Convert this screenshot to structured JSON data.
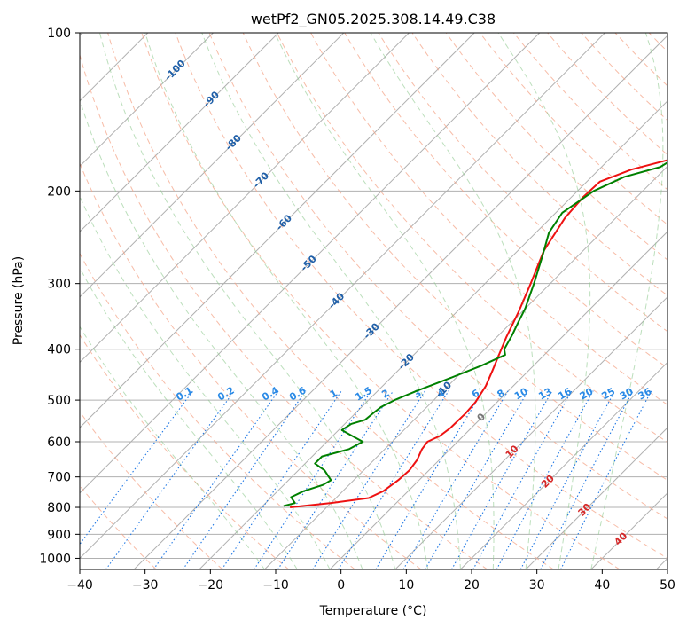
{
  "chart_data": {
    "type": "line",
    "title": "wetPf2_GN05.2025.308.14.49.C38",
    "xlabel": "Temperature (°C)",
    "ylabel": "Pressure (hPa)",
    "xlim": [
      -40,
      50
    ],
    "ylim": [
      1050,
      100
    ],
    "x_ticks": [
      -40,
      -30,
      -20,
      -10,
      0,
      10,
      20,
      30,
      40,
      50
    ],
    "y_ticks": [
      100,
      200,
      300,
      400,
      500,
      600,
      700,
      800,
      900,
      1000
    ],
    "skew_reference_pressure": 1000,
    "dry_adiabats_theta_c": [
      -30,
      -20,
      -10,
      0,
      10,
      20,
      30,
      40,
      50,
      60,
      70,
      80,
      90,
      100,
      110,
      120,
      130,
      140,
      150,
      160,
      170,
      180,
      190,
      200,
      210
    ],
    "moist_adiabats_start_c": [
      -10,
      -5,
      0,
      5,
      10,
      15,
      20,
      25,
      30,
      35,
      40
    ],
    "mixing_ratio_lines": [
      {
        "label": "0.1",
        "value": 0.1
      },
      {
        "label": "0.2",
        "value": 0.2
      },
      {
        "label": "0.4",
        "value": 0.4
      },
      {
        "label": "0.6",
        "value": 0.6
      },
      {
        "label": "1",
        "value": 1
      },
      {
        "label": "1.5",
        "value": 1.5
      },
      {
        "label": "2",
        "value": 2
      },
      {
        "label": "3",
        "value": 3
      },
      {
        "label": "4",
        "value": 4
      },
      {
        "label": "6",
        "value": 6
      },
      {
        "label": "8",
        "value": 8
      },
      {
        "label": "10",
        "value": 10
      },
      {
        "label": "13",
        "value": 13
      },
      {
        "label": "16",
        "value": 16
      },
      {
        "label": "20",
        "value": 20
      },
      {
        "label": "25",
        "value": 25
      },
      {
        "label": "30",
        "value": 30
      },
      {
        "label": "36",
        "value": 36
      }
    ],
    "isotherm_labels_blue": [
      {
        "label": "-100",
        "p": 118
      },
      {
        "label": "-90",
        "p": 134
      },
      {
        "label": "-80",
        "p": 162
      },
      {
        "label": "-70",
        "p": 191
      },
      {
        "label": "-60",
        "p": 230
      },
      {
        "label": "-50",
        "p": 275
      },
      {
        "label": "-40",
        "p": 324
      },
      {
        "label": "-30",
        "p": 370
      },
      {
        "label": "-20",
        "p": 423
      },
      {
        "label": "-10",
        "p": 478
      }
    ],
    "isotherm_labels_grey": [
      {
        "label": "0",
        "p": 540
      }
    ],
    "isotherm_labels_red": [
      {
        "label": "10",
        "p": 628
      },
      {
        "label": "20",
        "p": 715
      },
      {
        "label": "30",
        "p": 810
      },
      {
        "label": "40",
        "p": 920
      }
    ],
    "series": [
      {
        "name": "Temperature",
        "color": "#ee1111",
        "points": [
          {
            "t": -15.6,
            "p": 800
          },
          {
            "t": -10.0,
            "p": 785
          },
          {
            "t": -5.0,
            "p": 768
          },
          {
            "t": -3.8,
            "p": 745
          },
          {
            "t": -3.2,
            "p": 710
          },
          {
            "t": -3.0,
            "p": 680
          },
          {
            "t": -3.4,
            "p": 650
          },
          {
            "t": -4.3,
            "p": 620
          },
          {
            "t": -4.6,
            "p": 600
          },
          {
            "t": -3.6,
            "p": 585
          },
          {
            "t": -3.2,
            "p": 565
          },
          {
            "t": -3.1,
            "p": 530
          },
          {
            "t": -3.3,
            "p": 505
          },
          {
            "t": -4.2,
            "p": 470
          },
          {
            "t": -5.5,
            "p": 440
          },
          {
            "t": -7.0,
            "p": 409
          },
          {
            "t": -8.5,
            "p": 380
          },
          {
            "t": -10.5,
            "p": 340
          },
          {
            "t": -13.0,
            "p": 300
          },
          {
            "t": -16.0,
            "p": 260
          },
          {
            "t": -17.8,
            "p": 225
          },
          {
            "t": -18.2,
            "p": 205
          },
          {
            "t": -18.0,
            "p": 192
          },
          {
            "t": -15.0,
            "p": 182
          },
          {
            "t": -10.0,
            "p": 173
          },
          {
            "t": -5.0,
            "p": 163
          },
          {
            "t": 2.0,
            "p": 143
          },
          {
            "t": 9.0,
            "p": 126
          },
          {
            "t": 13.5,
            "p": 113
          },
          {
            "t": 16.5,
            "p": 105
          },
          {
            "t": 19.0,
            "p": 100
          }
        ]
      },
      {
        "name": "Dewpoint",
        "color": "#008000",
        "points": [
          {
            "t": -16.8,
            "p": 795
          },
          {
            "t": -15.5,
            "p": 785
          },
          {
            "t": -17.0,
            "p": 765
          },
          {
            "t": -16.0,
            "p": 745
          },
          {
            "t": -14.0,
            "p": 725
          },
          {
            "t": -13.5,
            "p": 710
          },
          {
            "t": -16.0,
            "p": 680
          },
          {
            "t": -18.5,
            "p": 660
          },
          {
            "t": -18.5,
            "p": 640
          },
          {
            "t": -15.5,
            "p": 620
          },
          {
            "t": -14.5,
            "p": 600
          },
          {
            "t": -17.0,
            "p": 585
          },
          {
            "t": -19.5,
            "p": 570
          },
          {
            "t": -19.0,
            "p": 555
          },
          {
            "t": -17.5,
            "p": 545
          },
          {
            "t": -17.3,
            "p": 530
          },
          {
            "t": -17.0,
            "p": 515
          },
          {
            "t": -16.0,
            "p": 500
          },
          {
            "t": -14.0,
            "p": 480
          },
          {
            "t": -11.0,
            "p": 455
          },
          {
            "t": -8.0,
            "p": 430
          },
          {
            "t": -6.0,
            "p": 410
          },
          {
            "t": -7.0,
            "p": 400
          },
          {
            "t": -8.0,
            "p": 375
          },
          {
            "t": -9.0,
            "p": 355
          },
          {
            "t": -10.0,
            "p": 335
          },
          {
            "t": -12.5,
            "p": 300
          },
          {
            "t": -15.5,
            "p": 265
          },
          {
            "t": -18.0,
            "p": 240
          },
          {
            "t": -19.0,
            "p": 220
          },
          {
            "t": -17.5,
            "p": 200
          },
          {
            "t": -15.0,
            "p": 188
          },
          {
            "t": -11.0,
            "p": 180
          },
          {
            "t": -10.0,
            "p": 172
          },
          {
            "t": -10.0,
            "p": 163
          },
          {
            "t": -8.8,
            "p": 150
          },
          {
            "t": -7.8,
            "p": 137
          },
          {
            "t": -6.4,
            "p": 122
          },
          {
            "t": -4.5,
            "p": 110
          },
          {
            "t": -3.2,
            "p": 100
          }
        ]
      }
    ]
  }
}
